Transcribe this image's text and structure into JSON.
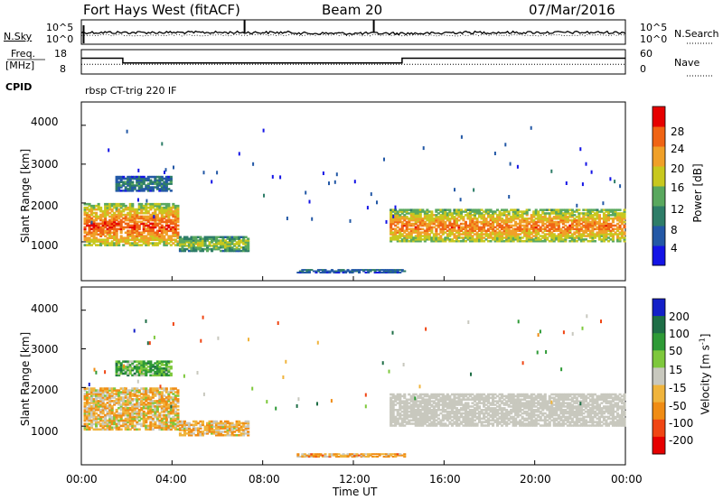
{
  "header": {
    "station": "Fort Hays West (fitACF)",
    "beam": "Beam 20",
    "date": "07/Mar/2016"
  },
  "noise_panel": {
    "left_label": "N.Sky",
    "right_label": "N.Search",
    "left_ticks": [
      "10^5",
      "10^0"
    ],
    "right_ticks": [
      "10^5",
      "10^0"
    ]
  },
  "freq_panel": {
    "left_label_1": "Freq.",
    "left_label_2": "[MHz]",
    "right_label": "Nave",
    "left_ticks": [
      "18",
      "8"
    ],
    "right_ticks": [
      "60",
      "0"
    ],
    "freq_steps": [
      {
        "t": 0.0,
        "f": 14.5
      },
      {
        "t": 1.83,
        "f": 12.5
      },
      {
        "t": 14.15,
        "f": 14.5
      },
      {
        "t": 24.0,
        "f": 14.5
      }
    ],
    "nave_level": 24
  },
  "cpid": {
    "label": "CPID",
    "value": "rbsp CT-trig 220 IF"
  },
  "power_panel": {
    "ylabel": "Slant Range [km]",
    "yticks": [
      "4000",
      "3000",
      "2000",
      "1000"
    ],
    "colorbar_label": "Power [dB]",
    "colorbar_ticks": [
      "28",
      "24",
      "20",
      "16",
      "12",
      "8",
      "4"
    ],
    "colors": [
      "#1414e6",
      "#2358a6",
      "#2e7d68",
      "#59a85e",
      "#c8c81e",
      "#f0a028",
      "#f06414",
      "#e60000"
    ]
  },
  "velocity_panel": {
    "ylabel": "Slant Range [km]",
    "yticks": [
      "4000",
      "3000",
      "2000",
      "1000"
    ],
    "colorbar_label_1": "Velocity",
    "colorbar_label_2": "[m s",
    "colorbar_label_3": "-1",
    "colorbar_label_4": "]",
    "colorbar_ticks": [
      "200",
      "100",
      "50",
      "15",
      "-15",
      "-50",
      "-100",
      "-200"
    ],
    "colors": [
      "#1420c8",
      "#1e6e46",
      "#2e9a36",
      "#7ec83c",
      "#c8c8be",
      "#f0b43c",
      "#f08c14",
      "#f04614",
      "#e60000"
    ]
  },
  "time_axis": {
    "label": "Time UT",
    "ticks": [
      "00:00",
      "04:00",
      "08:00",
      "12:00",
      "16:00",
      "20:00",
      "00:00"
    ]
  },
  "chart_data": {
    "type": "heatmap",
    "x": {
      "label": "Time UT",
      "range_hours": [
        0,
        24
      ]
    },
    "y": {
      "label": "Slant Range [km]",
      "range_km": [
        0,
        4600
      ]
    },
    "power_db_range": [
      0,
      30
    ],
    "velocity_ms_range": [
      -250,
      250
    ],
    "scatter_regions": [
      {
        "t0": 0.1,
        "t1": 4.3,
        "r0": 900,
        "r1": 2000,
        "power_db": 26,
        "velocity_ms": -30
      },
      {
        "t0": 4.3,
        "t1": 7.4,
        "r0": 750,
        "r1": 1150,
        "power_db": 16,
        "velocity_ms": -40
      },
      {
        "t0": 1.5,
        "t1": 4.0,
        "r0": 2300,
        "r1": 2700,
        "power_db": 10,
        "velocity_ms": 60
      },
      {
        "t0": 13.6,
        "t1": 24.0,
        "r0": 1000,
        "r1": 1850,
        "power_db": 24,
        "velocity_ms": 0
      },
      {
        "t0": 9.5,
        "t1": 14.3,
        "r0": 200,
        "r1": 300,
        "power_db": 8,
        "velocity_ms": -50
      }
    ]
  }
}
